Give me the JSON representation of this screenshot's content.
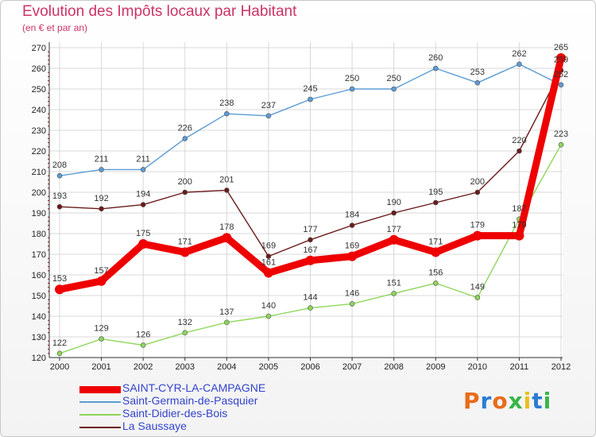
{
  "title": "Evolution des Impôts locaux par Habitant",
  "subtitle": "(en € et par an)",
  "logo": {
    "text": "Proxiti",
    "colors": [
      "#e86c1a",
      "#2b7cd3",
      "#e86c1a",
      "#39b54a",
      "#e9c01b",
      "#2b7cd3",
      "#39b54a"
    ]
  },
  "chart_data": {
    "type": "line",
    "categories": [
      "2000",
      "2001",
      "2002",
      "2003",
      "2004",
      "2005",
      "2006",
      "2007",
      "2008",
      "2009",
      "2010",
      "2011",
      "2012"
    ],
    "ylim": [
      120,
      270
    ],
    "yticks": [
      120,
      130,
      140,
      150,
      160,
      170,
      180,
      190,
      200,
      210,
      220,
      230,
      240,
      250,
      260,
      270
    ],
    "grid": true,
    "series": [
      {
        "name": "Saint-Germain-de-Pasquier",
        "color": "#5b9bd5",
        "values": [
          208,
          211,
          211,
          226,
          238,
          237,
          245,
          250,
          250,
          260,
          253,
          262,
          252
        ]
      },
      {
        "name": "Saint-Didier-des-Bois",
        "color": "#8ed65a",
        "values": [
          122,
          129,
          126,
          132,
          137,
          140,
          144,
          146,
          151,
          156,
          149,
          187,
          223
        ]
      },
      {
        "name": "La Saussaye",
        "color": "#6b1a1a",
        "values": [
          193,
          192,
          194,
          200,
          201,
          169,
          177,
          184,
          190,
          195,
          200,
          220,
          259
        ]
      },
      {
        "name": "SAINT-CYR-LA-CAMPAGNE",
        "color": "#ee0000",
        "values": [
          153,
          157,
          175,
          171,
          178,
          161,
          167,
          169,
          177,
          171,
          179,
          179,
          265
        ]
      }
    ],
    "data_labels": [
      [
        "208",
        "211",
        "211",
        "226",
        "238",
        "237",
        "245",
        "250",
        "250",
        "260",
        "253",
        "262",
        "252"
      ],
      [
        "122",
        "129",
        "126",
        "132",
        "137",
        "140",
        "144",
        "146",
        "151",
        "156",
        "149",
        "187",
        "223"
      ],
      [
        "193",
        "192",
        "194",
        "200",
        "201",
        "169",
        "177",
        "184",
        "190",
        "195",
        "200",
        "220",
        "259"
      ],
      [
        "153",
        "157",
        "175",
        "171",
        "178",
        "161",
        "167",
        "169",
        "177",
        "171",
        "179",
        "179",
        "265"
      ]
    ]
  },
  "legend": [
    {
      "label": "SAINT-CYR-LA-CAMPAGNE",
      "color": "#ee0000"
    },
    {
      "label": "Saint-Germain-de-Pasquier",
      "color": "#5b9bd5"
    },
    {
      "label": "Saint-Didier-des-Bois",
      "color": "#8ed65a"
    },
    {
      "label": "La Saussaye",
      "color": "#6b1a1a"
    }
  ]
}
